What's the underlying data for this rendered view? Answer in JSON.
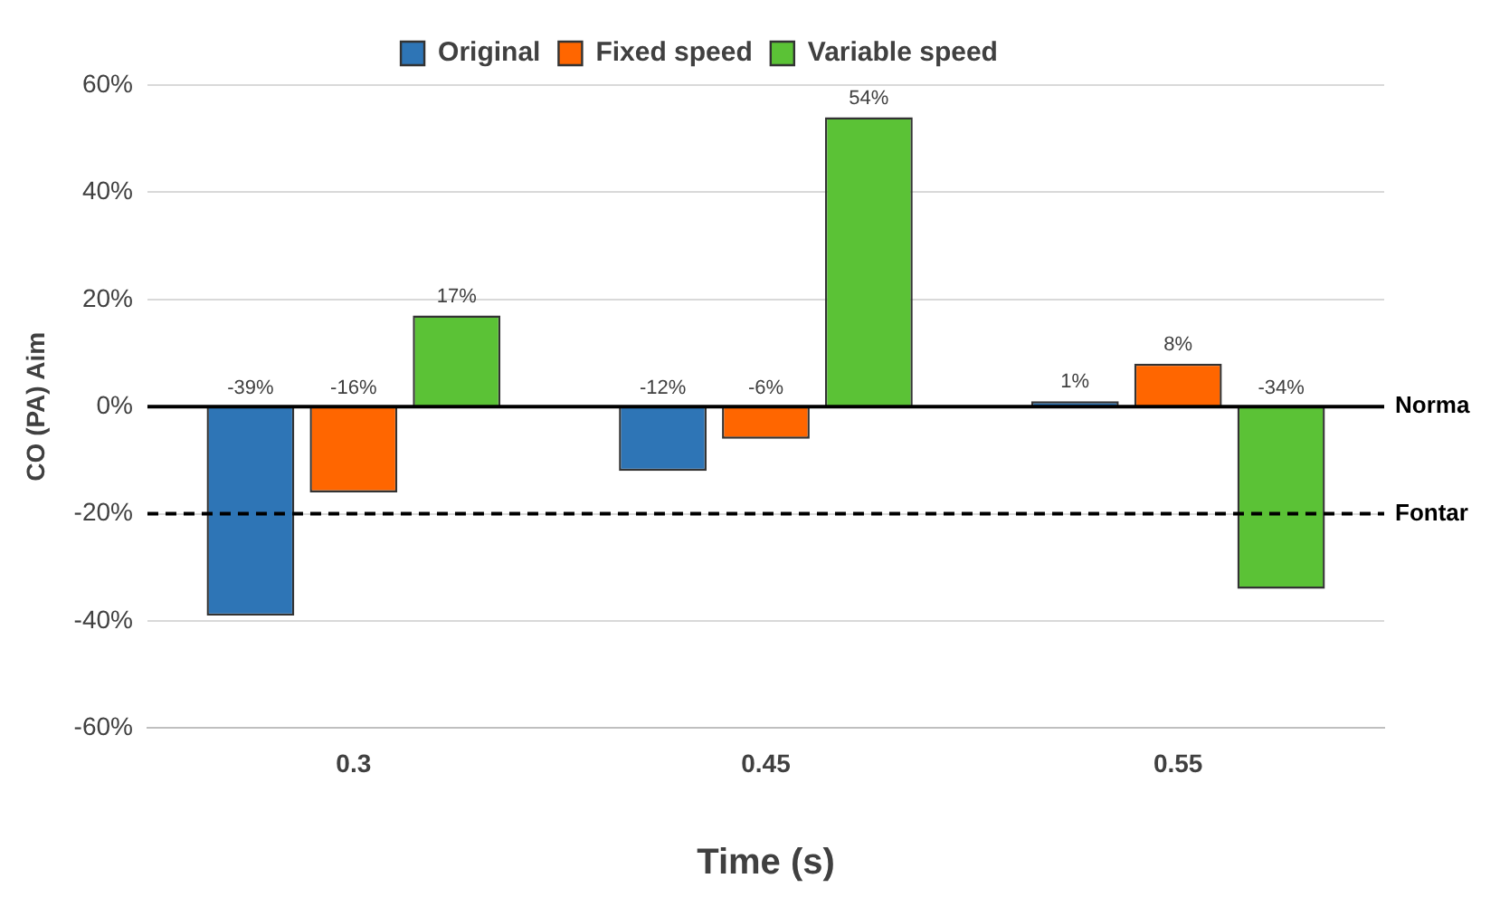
{
  "chart_data": {
    "type": "bar",
    "xlabel": "Time (s)",
    "ylabel": "CO (PA) Aim",
    "categories": [
      "0.3",
      "0.45",
      "0.55"
    ],
    "series": [
      {
        "name": "Original",
        "color": "#2e75b6",
        "values": [
          -39,
          -12,
          1
        ],
        "value_labels": [
          "-39%",
          "-12%",
          "1%"
        ]
      },
      {
        "name": "Fixed speed",
        "color": "#ff6600",
        "values": [
          -16,
          -6,
          8
        ],
        "value_labels": [
          "-16%",
          "-6%",
          "8%"
        ]
      },
      {
        "name": "Variable speed",
        "color": "#5bc236",
        "values": [
          17,
          54,
          -34
        ],
        "value_labels": [
          "17%",
          "54%",
          "-34%"
        ]
      }
    ],
    "ylim": [
      -60,
      60
    ],
    "yticks": [
      {
        "value": -60,
        "label": "-60%"
      },
      {
        "value": -40,
        "label": "-40%"
      },
      {
        "value": -20,
        "label": "-20%"
      },
      {
        "value": 0,
        "label": "0%"
      },
      {
        "value": 20,
        "label": "20%"
      },
      {
        "value": 40,
        "label": "40%"
      },
      {
        "value": 60,
        "label": "60%"
      }
    ],
    "ref_lines": [
      {
        "axis": "y",
        "value": 0,
        "label": "Norma",
        "line_style": "solid",
        "color": "#000000"
      },
      {
        "axis": "y",
        "value": -20,
        "label": "Fontar",
        "line_style": "dashed",
        "color": "#000000"
      }
    ],
    "grid": "y",
    "legend": "top"
  }
}
